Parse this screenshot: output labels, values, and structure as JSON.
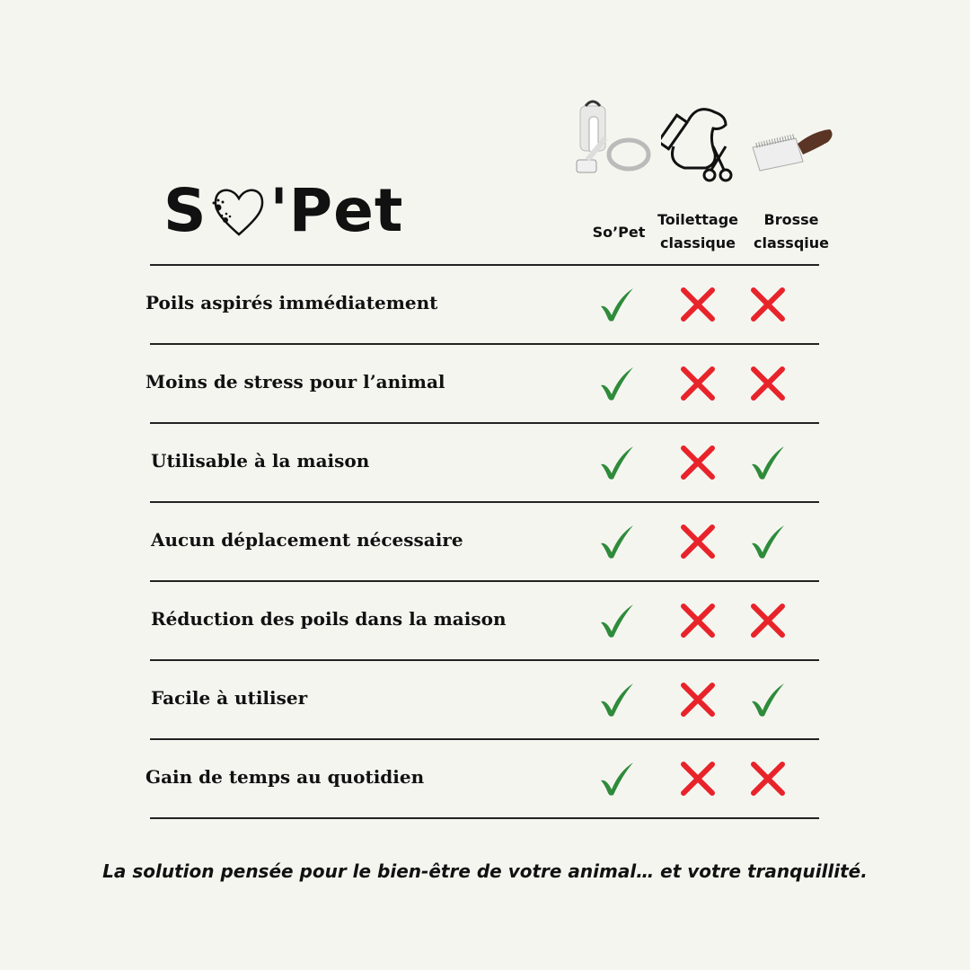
{
  "logo": {
    "text_left": "S",
    "text_right": "'Pet"
  },
  "columns": [
    {
      "label_line1": "So’Pet",
      "label_line2": "",
      "icon": "vacuum-grooming-kit-icon"
    },
    {
      "label_line1": "Toilettage",
      "label_line2": "classique",
      "icon": "dog-scissors-comb-icon"
    },
    {
      "label_line1": "Brosse",
      "label_line2": "classqiue",
      "icon": "slicker-brush-icon"
    }
  ],
  "rows": [
    {
      "label": "Poils aspirés immédiatement",
      "values": [
        true,
        false,
        false
      ]
    },
    {
      "label": "Moins de stress pour l’animal",
      "values": [
        true,
        false,
        false
      ]
    },
    {
      "label": "Utilisable à la maison",
      "values": [
        true,
        false,
        true
      ]
    },
    {
      "label": "Aucun déplacement nécessaire",
      "values": [
        true,
        false,
        true
      ]
    },
    {
      "label": "Réduction des poils dans la maison",
      "values": [
        true,
        false,
        false
      ]
    },
    {
      "label": "Facile à utiliser",
      "values": [
        true,
        false,
        true
      ]
    },
    {
      "label": "Gain de temps au quotidien",
      "values": [
        true,
        false,
        false
      ]
    }
  ],
  "colors": {
    "check": "#2e8b3a",
    "cross": "#e8232a",
    "background": "#f5f5f0"
  },
  "footer": "La solution pensée pour le bien-être de votre animal… et votre tranquillité."
}
